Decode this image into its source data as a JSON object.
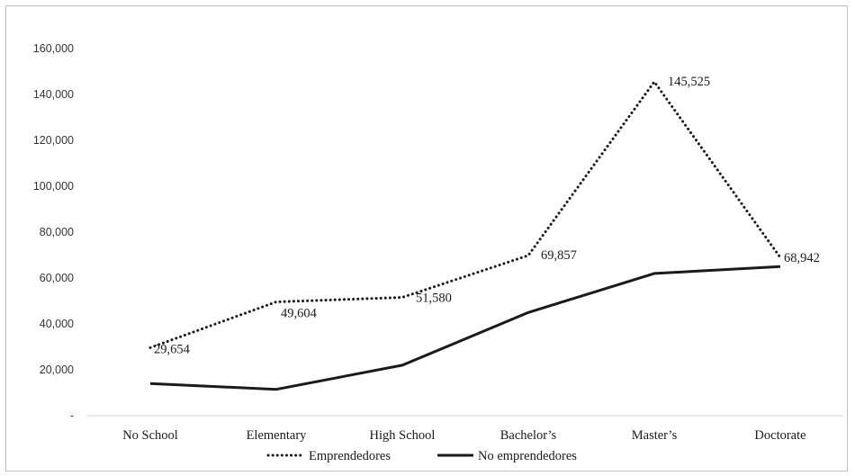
{
  "chart_data": {
    "type": "line",
    "categories": [
      "No School",
      "Elementary",
      "High School",
      "Bachelor’s",
      "Master’s",
      "Doctorate"
    ],
    "series": [
      {
        "name": "Emprendedores",
        "values": [
          29654,
          49604,
          51580,
          69857,
          145525,
          68942
        ],
        "labels": [
          "29,654",
          "49,604",
          "51,580",
          "69,857",
          "145,525",
          "68,942"
        ],
        "line_style": "dotted",
        "color": "#1a1a1a"
      },
      {
        "name": "No emprendedores",
        "values": [
          14000,
          11500,
          22000,
          45000,
          62000,
          65000
        ],
        "line_style": "solid",
        "color": "#1a1a1a"
      }
    ],
    "y_ticks": [
      "-",
      "20,000",
      "40,000",
      "60,000",
      "80,000",
      "100,000",
      "120,000",
      "140,000",
      "160,000"
    ],
    "y_tick_values": [
      0,
      20000,
      40000,
      60000,
      80000,
      100000,
      120000,
      140000,
      160000
    ],
    "ylim": [
      0,
      160000
    ],
    "grid": false,
    "legend": "bottom"
  }
}
